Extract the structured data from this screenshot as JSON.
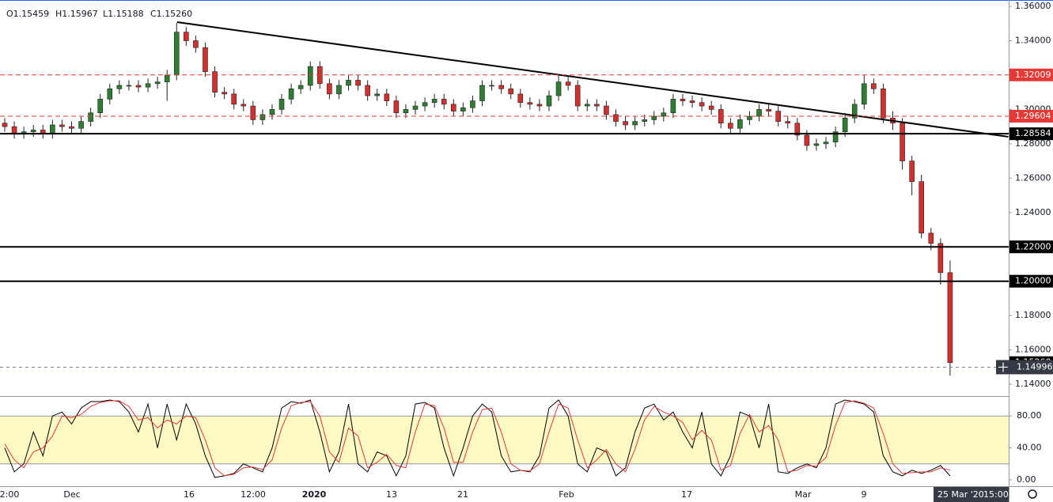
{
  "chart_data": [
    {
      "type": "candlestick",
      "ohlc_labels": [
        "O1.15459",
        "H1.15967",
        "L1.15188",
        "C1.15260"
      ],
      "open": [
        1.292,
        1.29,
        1.286,
        1.287,
        1.288,
        1.286,
        1.291,
        1.29,
        1.289,
        1.293,
        1.298,
        1.306,
        1.312,
        1.314,
        1.314,
        1.313,
        1.315,
        1.316,
        1.32,
        1.345,
        1.34,
        1.336,
        1.322,
        1.31,
        1.309,
        1.303,
        1.302,
        1.294,
        1.297,
        1.3,
        1.306,
        1.312,
        1.314,
        1.325,
        1.315,
        1.309,
        1.314,
        1.317,
        1.314,
        1.308,
        1.309,
        1.305,
        1.298,
        1.3,
        1.302,
        1.304,
        1.306,
        1.303,
        1.299,
        1.301,
        1.305,
        1.314,
        1.314,
        1.312,
        1.309,
        1.304,
        1.303,
        1.302,
        1.308,
        1.316,
        1.314,
        1.302,
        1.303,
        1.302,
        1.297,
        1.293,
        1.291,
        1.293,
        1.294,
        1.296,
        1.298,
        1.306,
        1.305,
        1.304,
        1.302,
        1.3,
        1.292,
        1.289,
        1.294,
        1.296,
        1.3,
        1.299,
        1.293,
        1.292,
        1.285,
        1.279,
        1.28,
        1.281,
        1.287,
        1.295,
        1.303,
        1.315,
        1.312,
        1.295,
        1.292,
        1.27,
        1.258,
        1.228,
        1.222,
        1.205
      ],
      "high": [
        1.295,
        1.293,
        1.29,
        1.291,
        1.291,
        1.294,
        1.294,
        1.293,
        1.296,
        1.301,
        1.309,
        1.315,
        1.317,
        1.317,
        1.317,
        1.318,
        1.319,
        1.323,
        1.3505,
        1.348,
        1.343,
        1.339,
        1.325,
        1.313,
        1.312,
        1.306,
        1.305,
        1.3,
        1.303,
        1.309,
        1.315,
        1.317,
        1.328,
        1.328,
        1.318,
        1.317,
        1.32,
        1.32,
        1.317,
        1.312,
        1.312,
        1.308,
        1.303,
        1.305,
        1.307,
        1.309,
        1.309,
        1.306,
        1.304,
        1.308,
        1.317,
        1.317,
        1.317,
        1.315,
        1.312,
        1.307,
        1.306,
        1.311,
        1.32,
        1.319,
        1.317,
        1.306,
        1.306,
        1.305,
        1.3,
        1.296,
        1.296,
        1.297,
        1.299,
        1.301,
        1.309,
        1.309,
        1.308,
        1.307,
        1.305,
        1.303,
        1.295,
        1.297,
        1.299,
        1.303,
        1.303,
        1.302,
        1.296,
        1.295,
        1.288,
        1.283,
        1.284,
        1.29,
        1.298,
        1.306,
        1.32,
        1.318,
        1.315,
        1.299,
        1.295,
        1.273,
        1.262,
        1.231,
        1.225,
        1.212
      ],
      "low": [
        1.287,
        1.283,
        1.283,
        1.284,
        1.283,
        1.283,
        1.287,
        1.286,
        1.286,
        1.29,
        1.295,
        1.303,
        1.309,
        1.311,
        1.31,
        1.31,
        1.312,
        1.305,
        1.317,
        1.337,
        1.333,
        1.319,
        1.307,
        1.306,
        1.3,
        1.299,
        1.291,
        1.291,
        1.294,
        1.297,
        1.303,
        1.309,
        1.311,
        1.312,
        1.306,
        1.306,
        1.311,
        1.311,
        1.305,
        1.305,
        1.302,
        1.295,
        1.295,
        1.297,
        1.299,
        1.301,
        1.3,
        1.296,
        1.296,
        1.298,
        1.302,
        1.311,
        1.309,
        1.306,
        1.301,
        1.3,
        1.299,
        1.299,
        1.305,
        1.311,
        1.299,
        1.299,
        1.299,
        1.294,
        1.29,
        1.288,
        1.288,
        1.29,
        1.291,
        1.293,
        1.295,
        1.302,
        1.301,
        1.299,
        1.297,
        1.289,
        1.286,
        1.286,
        1.291,
        1.293,
        1.296,
        1.29,
        1.289,
        1.282,
        1.276,
        1.276,
        1.277,
        1.278,
        1.284,
        1.292,
        1.3,
        1.309,
        1.292,
        1.288,
        1.265,
        1.25,
        1.225,
        1.218,
        1.198,
        1.145
      ],
      "close": [
        1.29,
        1.286,
        1.287,
        1.288,
        1.286,
        1.291,
        1.29,
        1.289,
        1.293,
        1.298,
        1.306,
        1.312,
        1.314,
        1.314,
        1.313,
        1.315,
        1.316,
        1.32,
        1.345,
        1.34,
        1.336,
        1.322,
        1.31,
        1.309,
        1.303,
        1.302,
        1.294,
        1.297,
        1.3,
        1.306,
        1.312,
        1.314,
        1.325,
        1.315,
        1.309,
        1.314,
        1.317,
        1.314,
        1.308,
        1.309,
        1.305,
        1.298,
        1.3,
        1.302,
        1.304,
        1.306,
        1.303,
        1.299,
        1.301,
        1.305,
        1.314,
        1.314,
        1.312,
        1.309,
        1.304,
        1.303,
        1.302,
        1.308,
        1.316,
        1.314,
        1.302,
        1.303,
        1.302,
        1.297,
        1.293,
        1.291,
        1.293,
        1.294,
        1.296,
        1.298,
        1.306,
        1.305,
        1.304,
        1.302,
        1.3,
        1.292,
        1.289,
        1.294,
        1.296,
        1.3,
        1.299,
        1.293,
        1.292,
        1.285,
        1.279,
        1.28,
        1.281,
        1.287,
        1.295,
        1.303,
        1.315,
        1.312,
        1.295,
        1.292,
        1.27,
        1.258,
        1.228,
        1.222,
        1.205,
        1.1526
      ],
      "up_color": "#2e7d32",
      "down_color": "#d32f2f",
      "ylim": [
        1.1336,
        1.3637
      ],
      "yticks": [
        {
          "value": 1.36,
          "label": "1.36000"
        },
        {
          "value": 1.34,
          "label": "1.34000"
        },
        {
          "value": 1.32,
          "label": "1.32000"
        },
        {
          "value": 1.3,
          "label": "1.30000"
        },
        {
          "value": 1.28,
          "label": "1.28000"
        },
        {
          "value": 1.26,
          "label": "1.26000"
        },
        {
          "value": 1.24,
          "label": "1.24000"
        },
        {
          "value": 1.22,
          "label": "1.22000"
        },
        {
          "value": 1.2,
          "label": "1.20000"
        },
        {
          "value": 1.18,
          "label": "1.18000"
        },
        {
          "value": 1.16,
          "label": "1.16000"
        },
        {
          "value": 1.14,
          "label": "1.14000"
        }
      ],
      "price_lines": [
        {
          "value": 1.32009,
          "label": "1.32009",
          "color": "#e53935",
          "style": "dashed"
        },
        {
          "value": 1.29604,
          "label": "1.29604",
          "color": "#e53935",
          "style": "dashed"
        },
        {
          "value": 1.28584,
          "label": "1.28584",
          "color": "#000000",
          "style": "solid"
        },
        {
          "value": 1.22,
          "label": "1.22000",
          "color": "#000000",
          "style": "solid"
        },
        {
          "value": 1.2,
          "label": "1.20000",
          "color": "#000000",
          "style": "solid"
        }
      ],
      "last_price": {
        "value": 1.1526,
        "label": "1.15260"
      },
      "crosshair": {
        "value": 1.14996,
        "label": "1.14996",
        "date": "25 Mar '20",
        "time": "15:00"
      },
      "trendline": {
        "x": [
          18.06,
          105.1
        ],
        "y": [
          1.3508,
          1.2841
        ]
      },
      "time_labels": [
        "2:00",
        "Dec",
        "16",
        "12:00",
        "2020",
        "13",
        "21",
        "Feb",
        "17",
        "Mar",
        "9"
      ]
    },
    {
      "type": "line",
      "series": [
        {
          "color": "#000000",
          "values": [
            40,
            10,
            20,
            60,
            30,
            80,
            85,
            70,
            90,
            98,
            98,
            100,
            98,
            85,
            60,
            95,
            40,
            95,
            50,
            95,
            70,
            30,
            3,
            5,
            8,
            20,
            15,
            10,
            40,
            90,
            98,
            96,
            100,
            60,
            10,
            35,
            95,
            20,
            10,
            35,
            30,
            5,
            30,
            95,
            97,
            90,
            40,
            5,
            40,
            80,
            95,
            85,
            30,
            10,
            12,
            10,
            30,
            90,
            100,
            80,
            20,
            10,
            40,
            35,
            5,
            15,
            60,
            90,
            95,
            75,
            85,
            60,
            40,
            85,
            20,
            5,
            30,
            85,
            80,
            40,
            95,
            10,
            8,
            15,
            20,
            15,
            40,
            95,
            100,
            98,
            95,
            85,
            30,
            10,
            5,
            12,
            8,
            12,
            18,
            5
          ]
        },
        {
          "color": "#e53935",
          "values": [
            45,
            25,
            15,
            35,
            40,
            55,
            80,
            78,
            82,
            92,
            97,
            99,
            99,
            92,
            75,
            78,
            65,
            75,
            70,
            80,
            78,
            50,
            15,
            5,
            7,
            15,
            16,
            13,
            25,
            65,
            93,
            97,
            98,
            80,
            35,
            22,
            65,
            55,
            15,
            22,
            32,
            18,
            15,
            60,
            95,
            93,
            65,
            22,
            22,
            60,
            88,
            90,
            60,
            20,
            12,
            11,
            20,
            60,
            95,
            90,
            50,
            15,
            25,
            38,
            20,
            10,
            38,
            75,
            92,
            85,
            80,
            72,
            50,
            62,
            50,
            12,
            18,
            58,
            82,
            60,
            68,
            50,
            10,
            12,
            18,
            17,
            28,
            68,
            97,
            99,
            96,
            90,
            58,
            20,
            8,
            9,
            10,
            10,
            15,
            12
          ]
        }
      ],
      "band": [
        20,
        80
      ],
      "band_color": "#fff9c4",
      "ylim": [
        -8,
        104
      ],
      "yticks": [
        {
          "value": 80,
          "label": "80.00"
        },
        {
          "value": 40,
          "label": "40.00"
        },
        {
          "value": 0,
          "label": "0.00"
        }
      ]
    }
  ]
}
